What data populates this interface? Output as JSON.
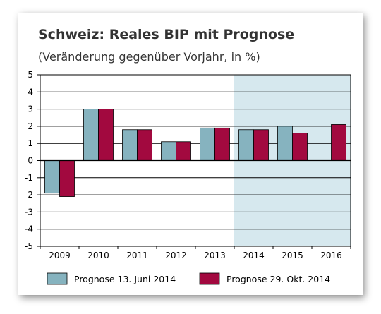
{
  "chart_data": {
    "type": "bar",
    "title": "Schweiz: Reales BIP mit Prognose",
    "subtitle": "(Veränderung gegenüber Vorjahr, in %)",
    "xlabel": "",
    "ylabel": "",
    "categories": [
      "2009",
      "2010",
      "2011",
      "2012",
      "2013",
      "2014",
      "2015",
      "2016"
    ],
    "ylim": [
      -5,
      5
    ],
    "yticks": [
      "5",
      "4",
      "3",
      "2",
      "1",
      "0",
      "-1",
      "-2",
      "-3",
      "-4",
      "-5"
    ],
    "grid": true,
    "shaded_forecast_from": "2014",
    "legend_position": "bottom",
    "series": [
      {
        "name": "Prognose 13. Juni 2014",
        "color": "#86b3bf",
        "values": [
          -1.9,
          3.0,
          1.8,
          1.1,
          1.9,
          1.8,
          2.0,
          null
        ]
      },
      {
        "name": "Prognose 29. Okt. 2014",
        "color": "#a2093f",
        "values": [
          -2.1,
          3.0,
          1.8,
          1.1,
          1.9,
          1.8,
          1.6,
          2.1
        ]
      }
    ]
  },
  "colors": {
    "forecast_shade": "#d6e8ee",
    "grid": "#000000"
  }
}
